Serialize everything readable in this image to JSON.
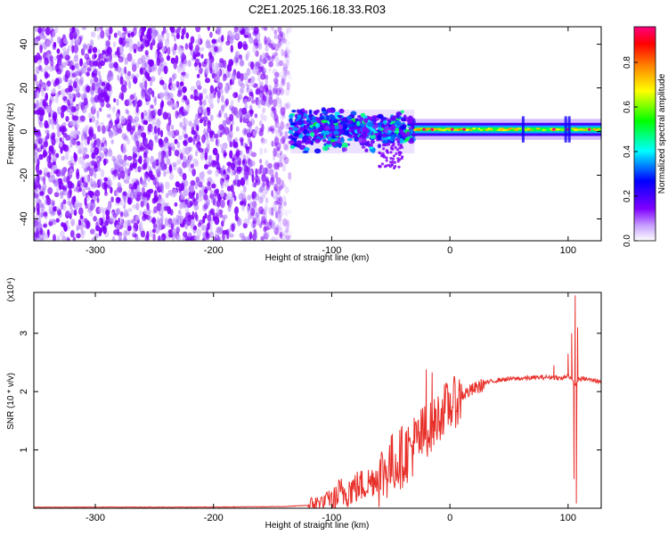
{
  "figure": {
    "title": "C2E1.2025.166.18.33.R03"
  },
  "chart_data": [
    {
      "type": "heatmap",
      "title": "C2E1.2025.166.18.33.R03",
      "xlabel": "Height of straight line (km)",
      "ylabel": "Frequency (Hz)",
      "xlim": [
        -352,
        128
      ],
      "ylim": [
        -50,
        48
      ],
      "x_ticks": [
        -300,
        -200,
        -100,
        0,
        100
      ],
      "x_tick_labels": [
        "-300",
        "-200",
        "-100",
        "0",
        "100"
      ],
      "y_ticks": [
        -40,
        -20,
        0,
        20,
        40
      ],
      "y_tick_labels": [
        "-40",
        "-20",
        "0",
        "20",
        "40"
      ],
      "colorbar": {
        "label": "Normalized spectral amplitude",
        "range": [
          0,
          0.96
        ],
        "ticks": [
          0,
          0.2,
          0.4,
          0.6,
          0.8
        ],
        "tick_labels": [
          "0.0",
          "0.2",
          "0.4",
          "0.6",
          "0.8"
        ],
        "colormap": [
          "#ffffff",
          "#7f00ff",
          "#0000ff",
          "#00ffff",
          "#00ff00",
          "#ffff00",
          "#ff8000",
          "#ff0000",
          "#ff0080"
        ]
      },
      "regions": [
        {
          "x_range": [
            -352,
            -135
          ],
          "f_range": [
            -50,
            48
          ],
          "level": 0.05,
          "description": "broadband noise"
        },
        {
          "x_range": [
            -135,
            -30
          ],
          "f_range": [
            -15,
            12
          ],
          "level": 0.3,
          "description": "broadened signal"
        },
        {
          "x_range": [
            -30,
            128
          ],
          "f_center": 1,
          "f_halfwidth": 3,
          "level": 0.5,
          "peak_level": 0.95
        }
      ]
    },
    {
      "type": "line",
      "xlabel": "Height of straight line (km)",
      "ylabel": "SNR (10 * v/v)",
      "y_multiplier": "(x10⁴)",
      "xlim": [
        -352,
        128
      ],
      "ylim": [
        0,
        3.7
      ],
      "x_ticks": [
        -300,
        -200,
        -100,
        0,
        100
      ],
      "x_tick_labels": [
        "-300",
        "-200",
        "-100",
        "0",
        "100"
      ],
      "y_ticks": [
        1,
        2,
        3
      ],
      "y_tick_labels": [
        "1",
        "2",
        "3"
      ],
      "color": "#e8302a",
      "series": [
        {
          "x": [
            -352,
            -200,
            -140,
            -120,
            -105,
            -95,
            -85,
            -70,
            -60,
            -50,
            -40,
            -30,
            -20,
            -15,
            -10,
            -5,
            0,
            10,
            20,
            30,
            40,
            50,
            60,
            80,
            90,
            95,
            100,
            103,
            106,
            108,
            110,
            115,
            120,
            128
          ],
          "y": [
            0.02,
            0.02,
            0.03,
            0.05,
            0.15,
            0.25,
            0.35,
            0.45,
            0.6,
            0.8,
            0.95,
            1.15,
            1.35,
            1.45,
            1.6,
            1.75,
            1.8,
            1.95,
            2.05,
            2.15,
            2.2,
            2.22,
            2.23,
            2.25,
            2.25,
            2.22,
            2.3,
            2.2,
            2.1,
            2.2,
            2.22,
            2.22,
            2.2,
            2.18
          ]
        }
      ],
      "noise_amplitude": [
        {
          "x_range": [
            -120,
            -100
          ],
          "amp": 0.15
        },
        {
          "x_range": [
            -100,
            -60
          ],
          "amp": 0.3
        },
        {
          "x_range": [
            -60,
            -20
          ],
          "amp": 0.55
        },
        {
          "x_range": [
            -20,
            10
          ],
          "amp": 0.45
        },
        {
          "x_range": [
            10,
            30
          ],
          "amp": 0.12
        },
        {
          "x_range": [
            30,
            128
          ],
          "amp": 0.04
        }
      ],
      "spikes": [
        {
          "x": -20,
          "y": 2.38
        },
        {
          "x": -15,
          "y": 2.33
        },
        {
          "x": 8,
          "y": 2.02
        },
        {
          "x": 88,
          "y": 2.45
        },
        {
          "x": 100,
          "y": 2.65
        },
        {
          "x": 103,
          "y": 3.0
        },
        {
          "x": 105,
          "y": 0.5
        },
        {
          "x": 106,
          "y": 3.65
        },
        {
          "x": 107,
          "y": 0.08
        },
        {
          "x": 108,
          "y": 3.1
        }
      ]
    }
  ]
}
